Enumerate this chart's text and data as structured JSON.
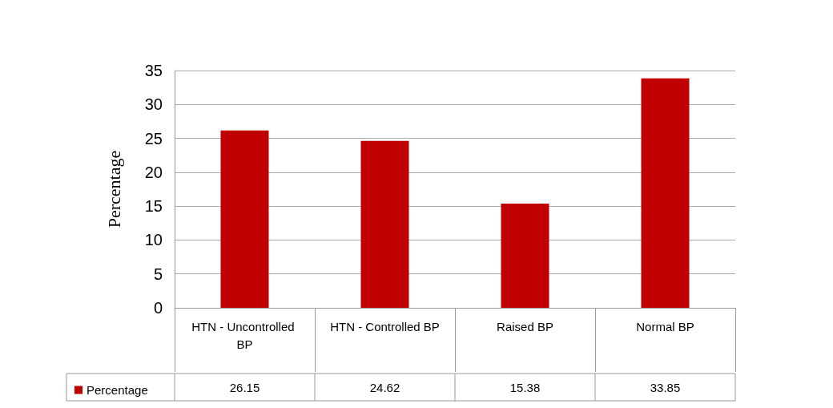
{
  "chart_data": {
    "type": "bar",
    "ylabel": "Percentage",
    "categories": [
      "HTN - Uncontrolled BP",
      "HTN - Controlled BP",
      "Raised BP",
      "Normal BP"
    ],
    "series": [
      {
        "name": "Percentage",
        "color": "#c00000",
        "values": [
          26.15,
          24.62,
          15.38,
          33.85
        ]
      }
    ],
    "ylim": [
      0,
      35
    ],
    "yticks": [
      0,
      5,
      10,
      15,
      20,
      25,
      30,
      35
    ],
    "grid": "y",
    "legend": "bottom",
    "data_labels": true
  }
}
